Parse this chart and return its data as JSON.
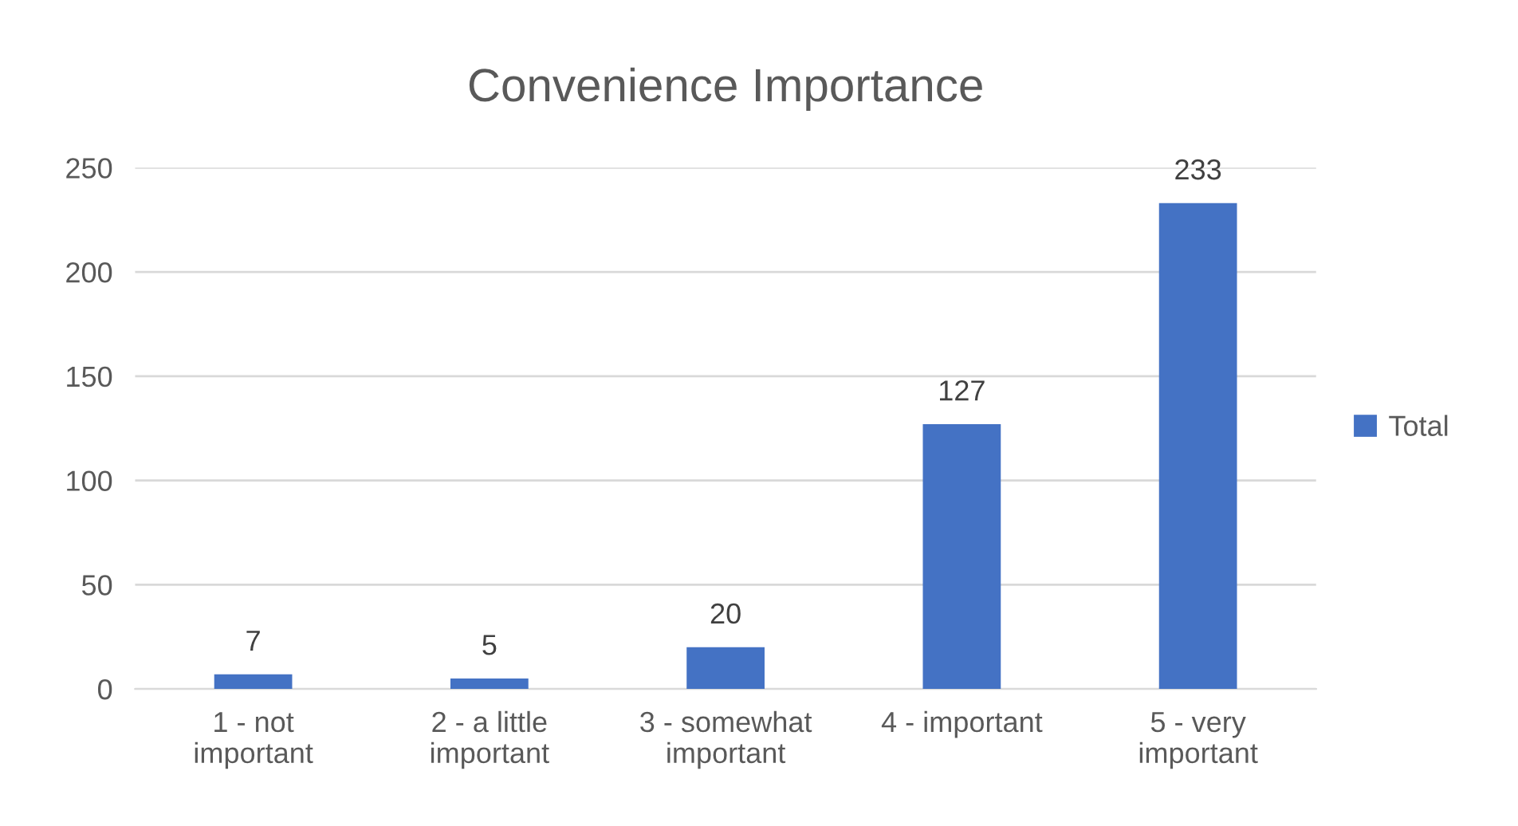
{
  "chart_data": {
    "type": "bar",
    "title": "Convenience Importance",
    "categories": [
      "1 - not\nimportant",
      "2 - a little\nimportant",
      "3 - somewhat\nimportant",
      "4 - important",
      "5 - very\nimportant"
    ],
    "series": [
      {
        "name": "Total",
        "color": "#4472c4",
        "values": [
          7,
          5,
          20,
          127,
          233
        ]
      }
    ],
    "ylim": [
      0,
      250
    ],
    "yticks": [
      0,
      50,
      100,
      150,
      200,
      250
    ],
    "grid": "y",
    "legend": "right",
    "data_labels": true
  }
}
